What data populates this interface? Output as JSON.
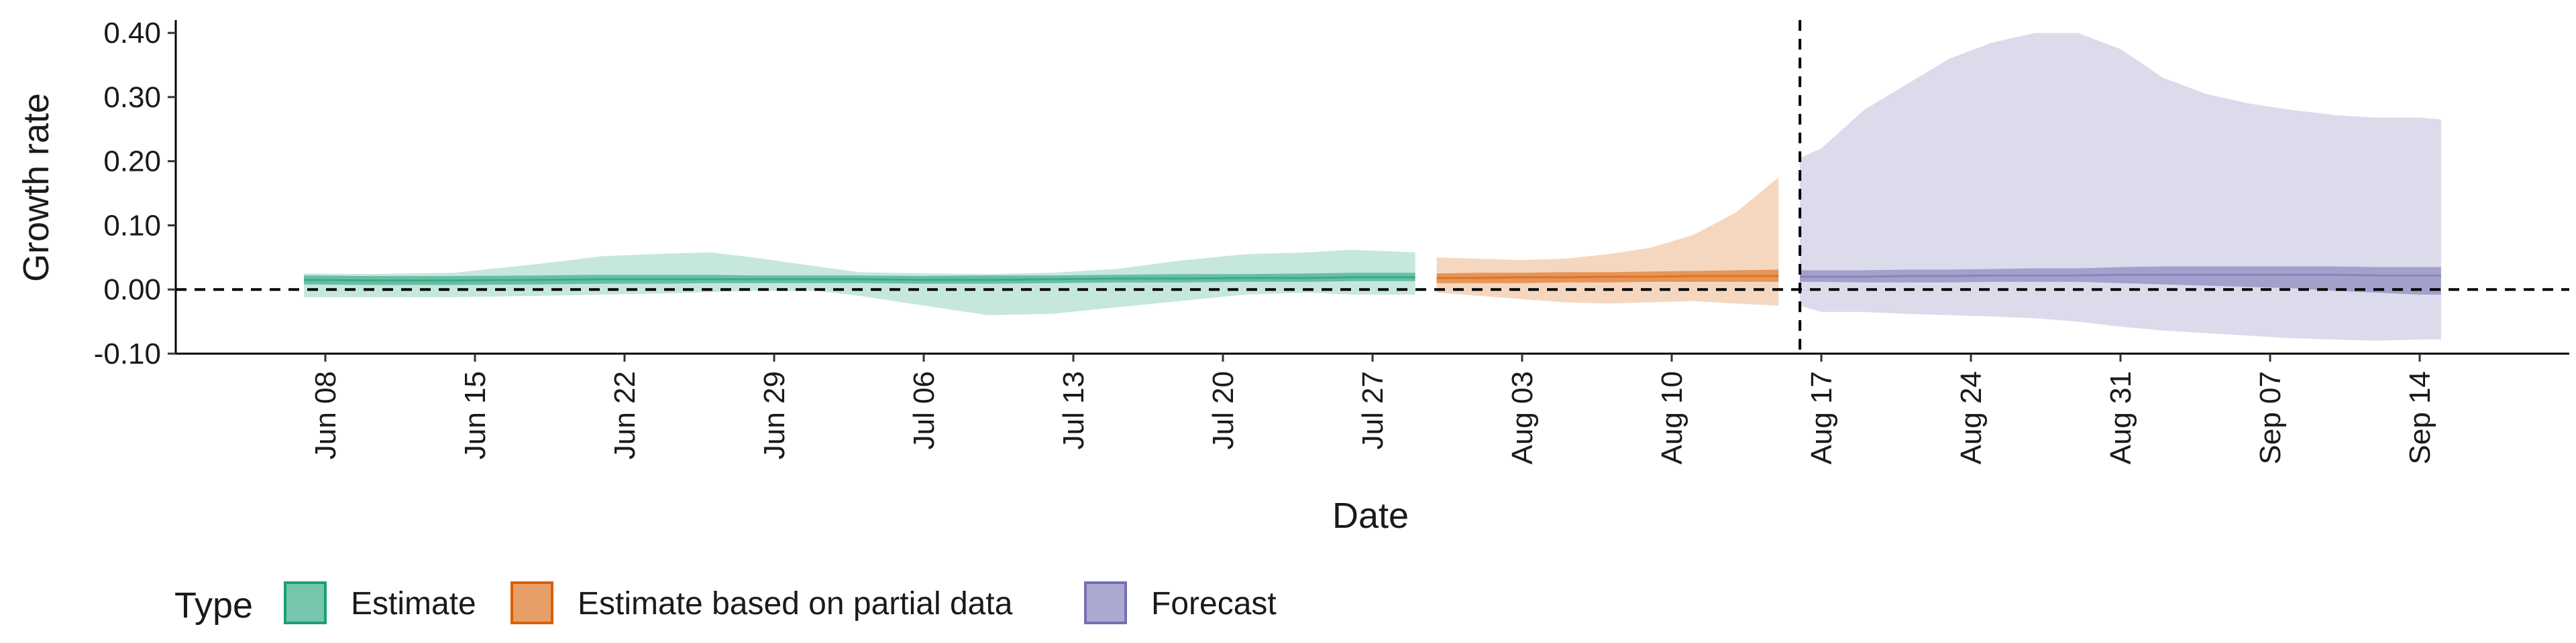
{
  "chart_data": {
    "type": "area",
    "xlabel": "Date",
    "ylabel": "Growth rate",
    "ylim": [
      -0.1,
      0.42
    ],
    "xlim": [
      "2020-06-01",
      "2020-09-21"
    ],
    "y_ticks": [
      -0.1,
      0.0,
      0.1,
      0.2,
      0.3,
      0.4
    ],
    "y_tick_labels": [
      "-0.10",
      "0.00",
      "0.10",
      "0.20",
      "0.30",
      "0.40"
    ],
    "x_ticks": [
      "2020-06-08",
      "2020-06-15",
      "2020-06-22",
      "2020-06-29",
      "2020-07-06",
      "2020-07-13",
      "2020-07-20",
      "2020-07-27",
      "2020-08-03",
      "2020-08-10",
      "2020-08-17",
      "2020-08-24",
      "2020-08-31",
      "2020-09-07",
      "2020-09-14"
    ],
    "x_tick_labels": [
      "Jun 08",
      "Jun 15",
      "Jun 22",
      "Jun 29",
      "Jul 06",
      "Jul 13",
      "Jul 20",
      "Jul 27",
      "Aug 03",
      "Aug 10",
      "Aug 17",
      "Aug 24",
      "Aug 31",
      "Sep 07",
      "Sep 14"
    ],
    "hline": 0.0,
    "vline": "2020-08-16",
    "grid": false,
    "legend": {
      "title": "Type",
      "position": "bottom-left"
    },
    "series": [
      {
        "name": "Estimate",
        "color": "#1B9E77",
        "dates": [
          "2020-06-07",
          "2020-06-10",
          "2020-06-14",
          "2020-06-18",
          "2020-06-21",
          "2020-06-24",
          "2020-06-26",
          "2020-06-28",
          "2020-07-01",
          "2020-07-03",
          "2020-07-06",
          "2020-07-09",
          "2020-07-12",
          "2020-07-15",
          "2020-07-18",
          "2020-07-21",
          "2020-07-24",
          "2020-07-26",
          "2020-07-29"
        ],
        "median": [
          0.015,
          0.014,
          0.014,
          0.015,
          0.016,
          0.016,
          0.016,
          0.016,
          0.016,
          0.016,
          0.015,
          0.015,
          0.016,
          0.017,
          0.017,
          0.018,
          0.018,
          0.019,
          0.019
        ],
        "inner_lower": [
          0.008,
          0.007,
          0.007,
          0.008,
          0.009,
          0.009,
          0.01,
          0.01,
          0.01,
          0.01,
          0.009,
          0.009,
          0.01,
          0.011,
          0.011,
          0.012,
          0.012,
          0.013,
          0.013
        ],
        "inner_upper": [
          0.022,
          0.021,
          0.021,
          0.022,
          0.023,
          0.023,
          0.023,
          0.022,
          0.022,
          0.022,
          0.021,
          0.022,
          0.022,
          0.023,
          0.024,
          0.024,
          0.025,
          0.026,
          0.026
        ],
        "outer_lower": [
          -0.012,
          -0.012,
          -0.012,
          -0.01,
          -0.008,
          -0.006,
          -0.004,
          -0.002,
          -0.002,
          -0.01,
          -0.025,
          -0.04,
          -0.038,
          -0.028,
          -0.018,
          -0.008,
          -0.005,
          -0.008,
          -0.008
        ],
        "outer_upper": [
          0.025,
          0.024,
          0.026,
          0.04,
          0.052,
          0.056,
          0.058,
          0.05,
          0.036,
          0.027,
          0.025,
          0.024,
          0.026,
          0.032,
          0.045,
          0.055,
          0.058,
          0.062,
          0.058
        ]
      },
      {
        "name": "Estimate based on partial data",
        "color": "#D95F02",
        "dates": [
          "2020-07-30",
          "2020-08-01",
          "2020-08-03",
          "2020-08-05",
          "2020-08-07",
          "2020-08-09",
          "2020-08-11",
          "2020-08-13",
          "2020-08-15"
        ],
        "median": [
          0.018,
          0.018,
          0.019,
          0.019,
          0.02,
          0.02,
          0.021,
          0.021,
          0.021
        ],
        "inner_lower": [
          0.01,
          0.01,
          0.01,
          0.011,
          0.011,
          0.012,
          0.012,
          0.012,
          0.012
        ],
        "inner_upper": [
          0.025,
          0.026,
          0.026,
          0.027,
          0.027,
          0.028,
          0.029,
          0.03,
          0.031
        ],
        "outer_lower": [
          -0.005,
          -0.01,
          -0.015,
          -0.02,
          -0.022,
          -0.02,
          -0.018,
          -0.022,
          -0.025
        ],
        "outer_upper": [
          0.05,
          0.048,
          0.046,
          0.048,
          0.055,
          0.065,
          0.085,
          0.12,
          0.175
        ]
      },
      {
        "name": "Forecast",
        "color": "#7570B3",
        "dates": [
          "2020-08-16",
          "2020-08-17",
          "2020-08-19",
          "2020-08-21",
          "2020-08-23",
          "2020-08-25",
          "2020-08-27",
          "2020-08-29",
          "2020-08-31",
          "2020-09-02",
          "2020-09-04",
          "2020-09-06",
          "2020-09-08",
          "2020-09-10",
          "2020-09-12",
          "2020-09-14",
          "2020-09-15"
        ],
        "median": [
          0.02,
          0.02,
          0.02,
          0.021,
          0.021,
          0.022,
          0.022,
          0.022,
          0.023,
          0.023,
          0.023,
          0.023,
          0.023,
          0.023,
          0.022,
          0.022,
          0.022
        ],
        "inner_lower": [
          0.012,
          0.012,
          0.011,
          0.011,
          0.011,
          0.012,
          0.012,
          0.012,
          0.01,
          0.008,
          0.006,
          0.004,
          0.002,
          -0.002,
          -0.005,
          -0.008,
          -0.008
        ],
        "inner_upper": [
          0.03,
          0.03,
          0.03,
          0.031,
          0.031,
          0.032,
          0.033,
          0.033,
          0.035,
          0.036,
          0.036,
          0.036,
          0.036,
          0.036,
          0.035,
          0.035,
          0.035
        ],
        "outer_lower": [
          -0.025,
          -0.035,
          -0.035,
          -0.038,
          -0.04,
          -0.042,
          -0.045,
          -0.05,
          -0.058,
          -0.064,
          -0.068,
          -0.072,
          -0.076,
          -0.078,
          -0.08,
          -0.078,
          -0.078
        ],
        "outer_upper": [
          0.205,
          0.22,
          0.28,
          0.32,
          0.36,
          0.385,
          0.4,
          0.4,
          0.375,
          0.33,
          0.305,
          0.29,
          0.28,
          0.272,
          0.268,
          0.268,
          0.265
        ]
      }
    ]
  }
}
